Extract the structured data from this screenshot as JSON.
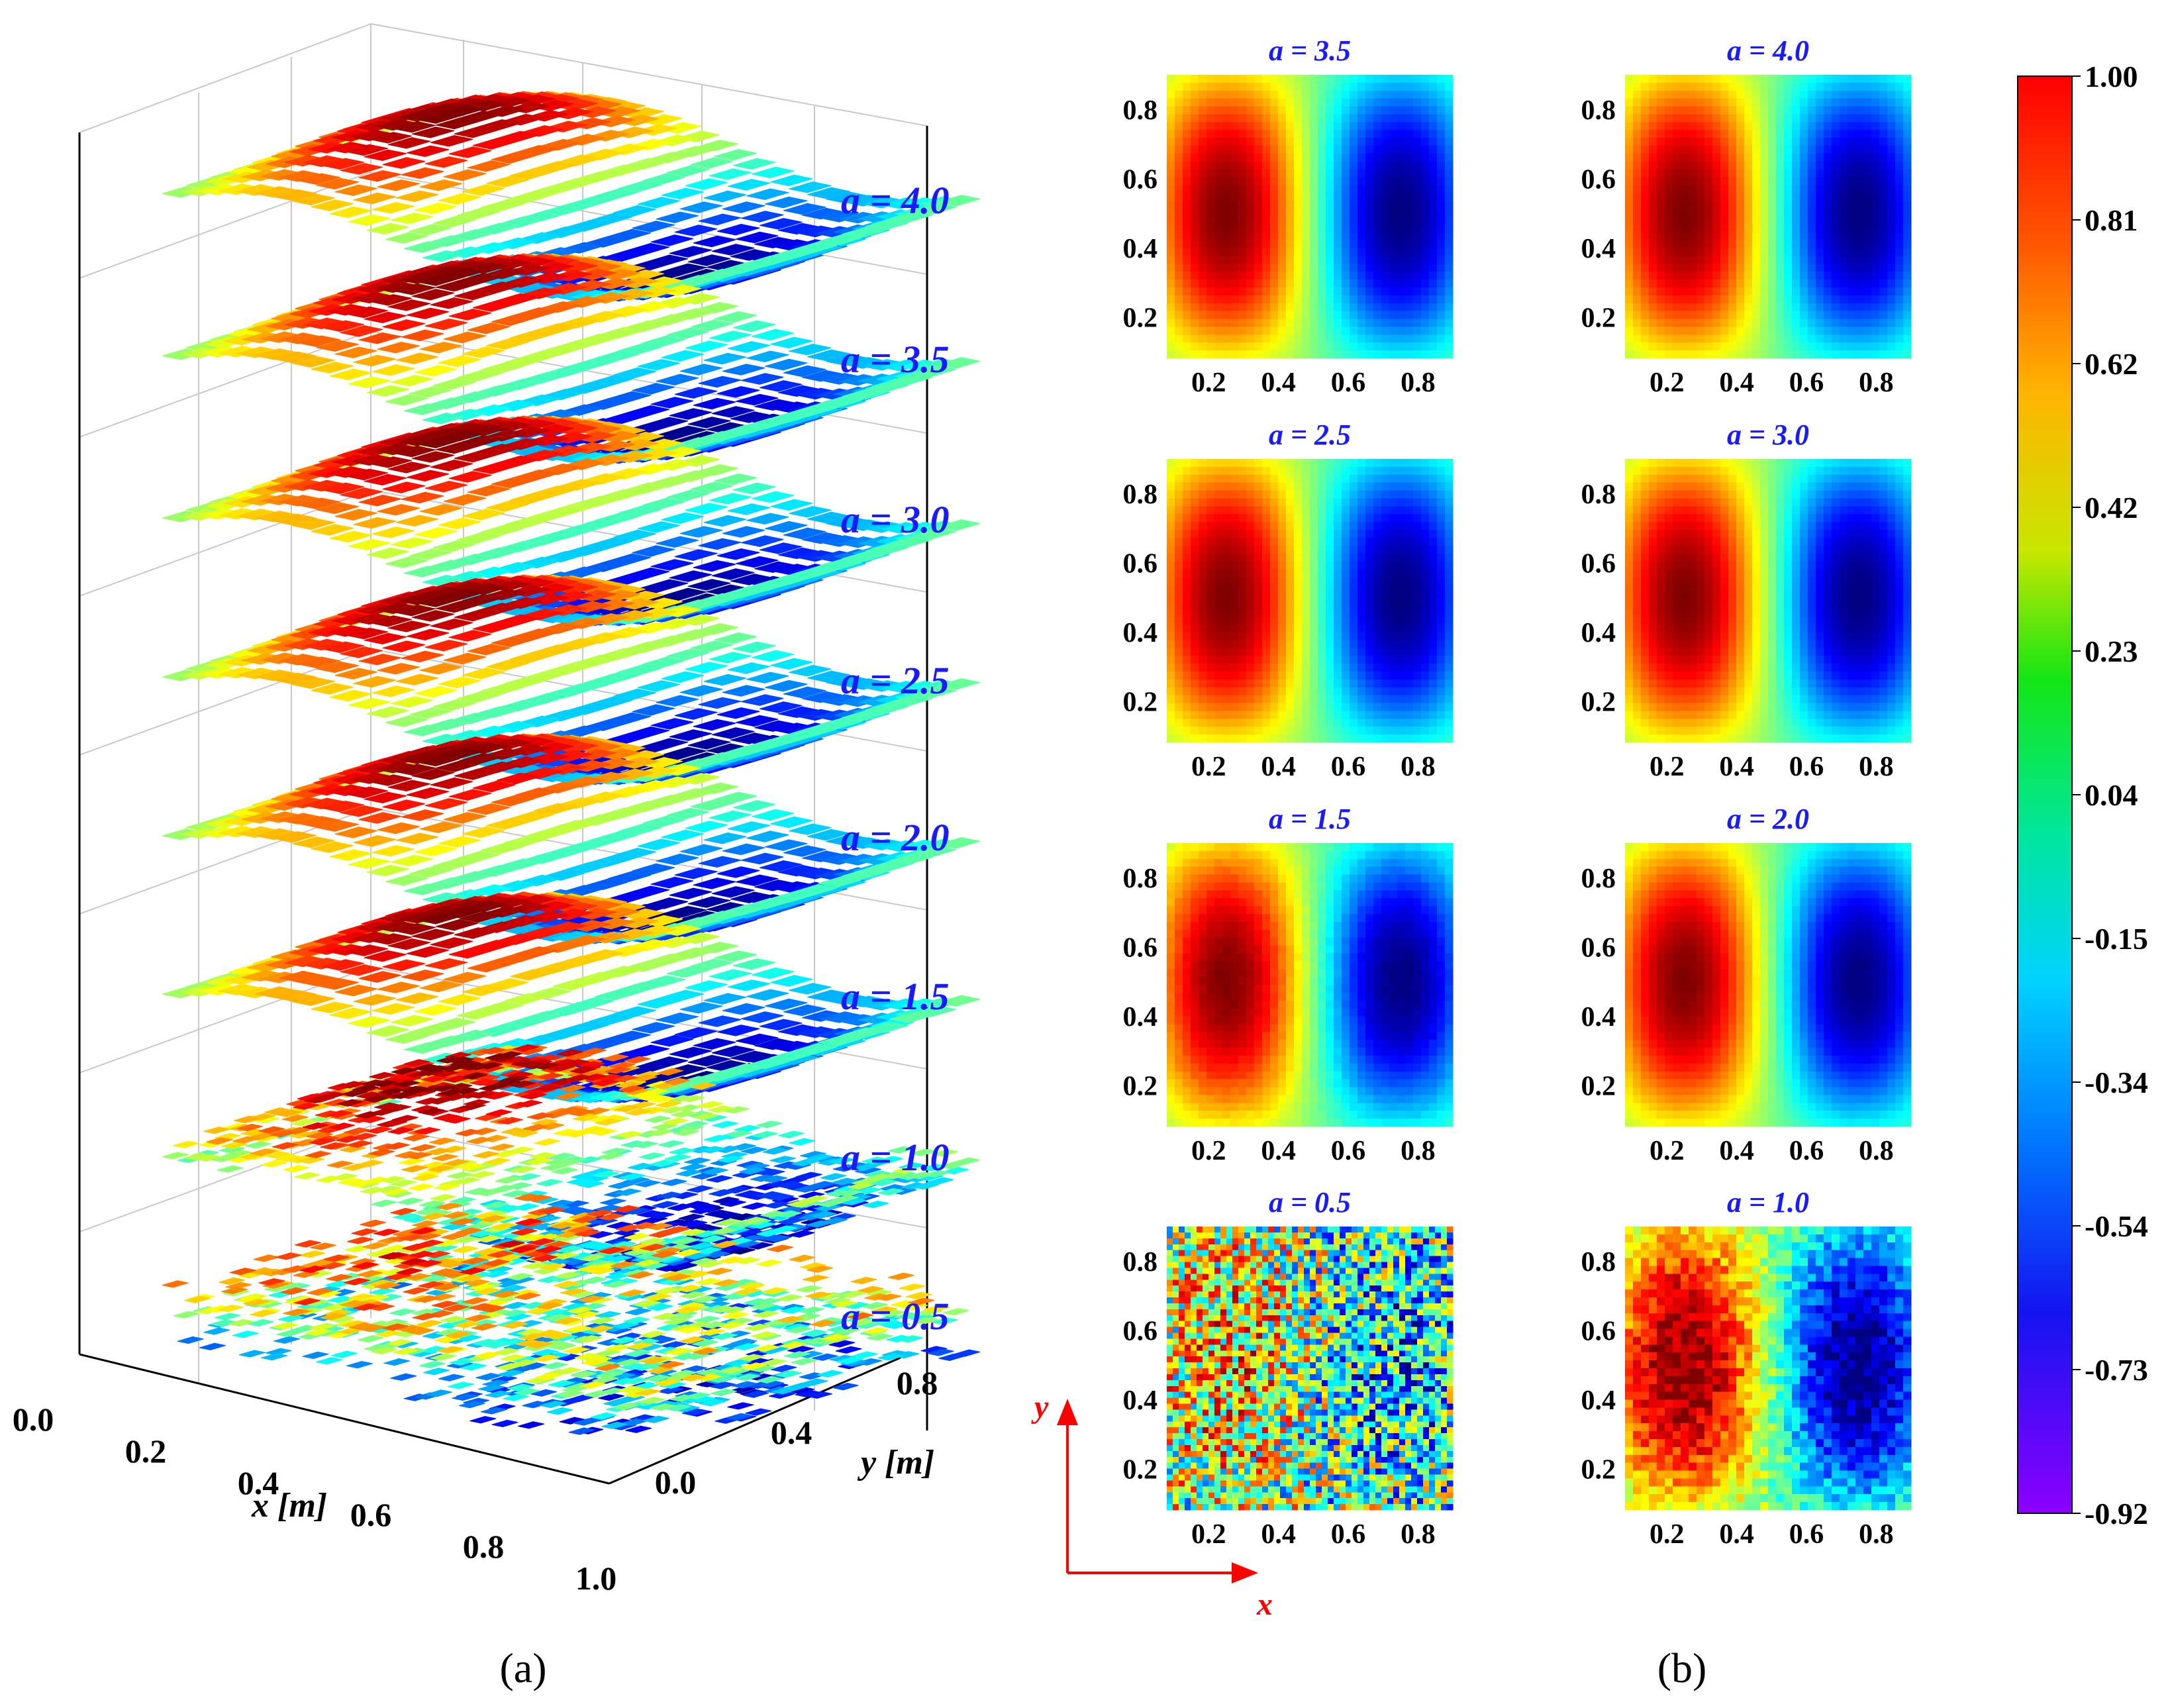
{
  "figure": {
    "panel_a_label": "(a)",
    "panel_b_label": "(b)"
  },
  "colors": {
    "label_blue": "#1a1aff",
    "arrow_red": "#ff0000",
    "axis_black": "#000000",
    "grid_gray": "#c8c8c8"
  },
  "chart_data": [
    {
      "id": "panel_a",
      "type": "surface3d",
      "title": "(a)",
      "xlabel": "x [m]",
      "ylabel": "y [m]",
      "xticks": [
        "0.0",
        "0.2",
        "0.4",
        "0.6",
        "0.8",
        "1.0"
      ],
      "yticks": [
        "0.0",
        "0.4",
        "0.8"
      ],
      "xlim": [
        0.0,
        1.0
      ],
      "ylim": [
        0.0,
        0.9
      ],
      "layers": [
        {
          "a": 4.0,
          "label": "a = 4.0",
          "noise": 0.0
        },
        {
          "a": 3.5,
          "label": "a = 3.5",
          "noise": 0.0
        },
        {
          "a": 3.0,
          "label": "a = 3.0",
          "noise": 0.0
        },
        {
          "a": 2.5,
          "label": "a = 2.5",
          "noise": 0.0
        },
        {
          "a": 2.0,
          "label": "a = 2.0",
          "noise": 0.02
        },
        {
          "a": 1.5,
          "label": "a = 1.5",
          "noise": 0.04
        },
        {
          "a": 1.0,
          "label": "a = 1.0",
          "noise": 0.5
        },
        {
          "a": 0.5,
          "label": "a = 0.5",
          "noise": 1.2
        }
      ]
    },
    {
      "id": "panel_b",
      "type": "heatmap",
      "title": "(b)",
      "xlabel": "x",
      "ylabel": "y",
      "xticks": [
        "0.2",
        "0.4",
        "0.6",
        "0.8"
      ],
      "yticks": [
        "0.8",
        "0.6",
        "0.4",
        "0.2"
      ],
      "xlim": [
        0.08,
        0.9
      ],
      "ylim": [
        0.08,
        0.9
      ],
      "field": "sin(2*pi*x)*sin(pi*y)",
      "maps": [
        {
          "a": 3.5,
          "title": "a = 3.5",
          "noise": 0.0
        },
        {
          "a": 4.0,
          "title": "a = 4.0",
          "noise": 0.0
        },
        {
          "a": 2.5,
          "title": "a = 2.5",
          "noise": 0.0
        },
        {
          "a": 3.0,
          "title": "a = 3.0",
          "noise": 0.0
        },
        {
          "a": 1.5,
          "title": "a = 1.5",
          "noise": 0.04
        },
        {
          "a": 2.0,
          "title": "a = 2.0",
          "noise": 0.02
        },
        {
          "a": 0.5,
          "title": "a = 0.5",
          "noise": 1.3
        },
        {
          "a": 1.0,
          "title": "a = 1.0",
          "noise": 0.35
        }
      ]
    },
    {
      "id": "colorbar",
      "type": "colorbar",
      "range": [
        -0.92,
        1.0
      ],
      "ticks": [
        "1.00",
        "0.81",
        "0.62",
        "0.42",
        "0.23",
        "0.04",
        "-0.15",
        "-0.34",
        "-0.54",
        "-0.73",
        "-0.92"
      ],
      "colormap": "jet"
    }
  ]
}
